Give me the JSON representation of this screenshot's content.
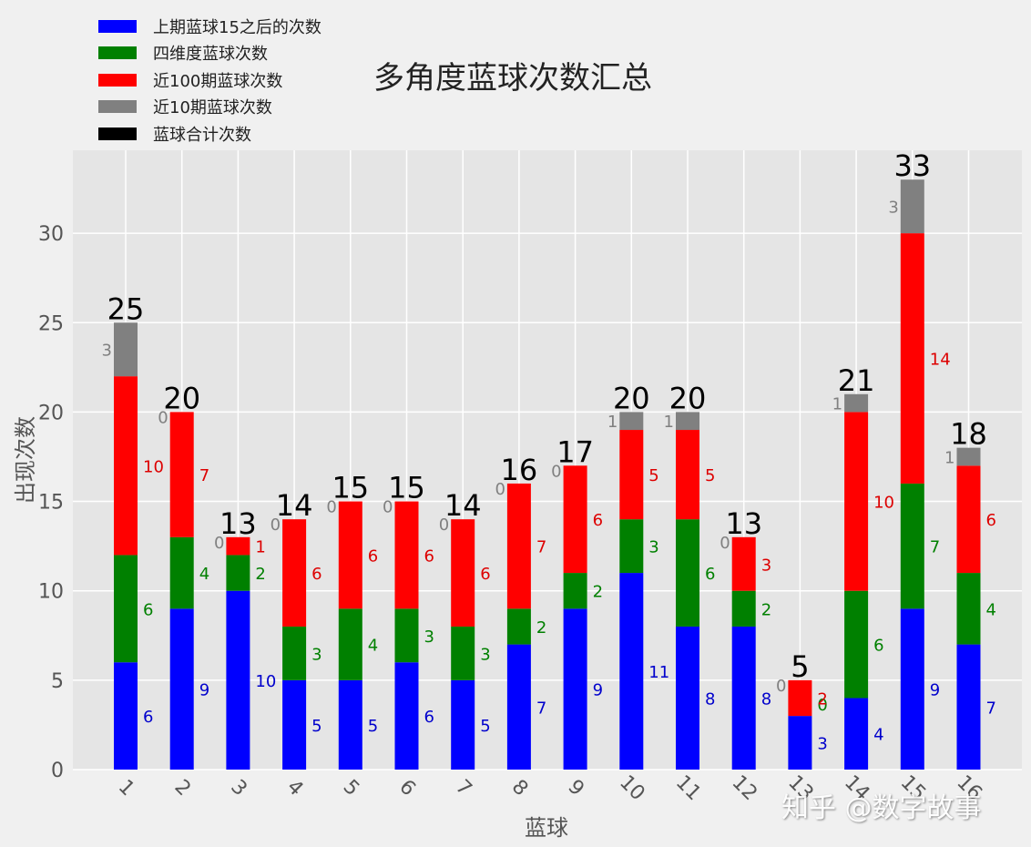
{
  "chart_data": {
    "type": "bar",
    "stacked": true,
    "title": "多角度蓝球次数汇总",
    "xlabel": "蓝球",
    "ylabel": "出现次数",
    "ylim": [
      0,
      34.5
    ],
    "yticks": [
      0,
      5,
      10,
      15,
      20,
      25,
      30
    ],
    "grid": true,
    "legend_position": "upper left",
    "categories": [
      "1",
      "2",
      "3",
      "4",
      "5",
      "6",
      "7",
      "8",
      "9",
      "10",
      "11",
      "12",
      "13",
      "14",
      "15",
      "16"
    ],
    "series": [
      {
        "name": "上期蓝球15之后的次数",
        "color": "#0000ff",
        "values": [
          6,
          9,
          10,
          5,
          5,
          6,
          5,
          7,
          9,
          11,
          8,
          8,
          3,
          4,
          9,
          7
        ]
      },
      {
        "name": "四维度蓝球次数",
        "color": "#008000",
        "values": [
          6,
          4,
          2,
          3,
          4,
          3,
          3,
          2,
          2,
          3,
          6,
          2,
          0,
          6,
          7,
          4
        ]
      },
      {
        "name": "近100期蓝球次数",
        "color": "#ff0000",
        "values": [
          10,
          7,
          1,
          6,
          6,
          6,
          6,
          7,
          6,
          5,
          5,
          3,
          2,
          10,
          14,
          6
        ]
      },
      {
        "name": "近10期蓝球次数",
        "color": "#808080",
        "values": [
          3,
          0,
          0,
          0,
          0,
          0,
          0,
          0,
          0,
          1,
          1,
          0,
          0,
          1,
          3,
          1
        ]
      },
      {
        "name": "蓝球合计次数",
        "color": "#000000",
        "values": [
          25,
          20,
          13,
          14,
          15,
          15,
          14,
          16,
          17,
          20,
          20,
          13,
          5,
          21,
          33,
          18
        ]
      }
    ]
  },
  "watermark": "知乎 @数字故事"
}
